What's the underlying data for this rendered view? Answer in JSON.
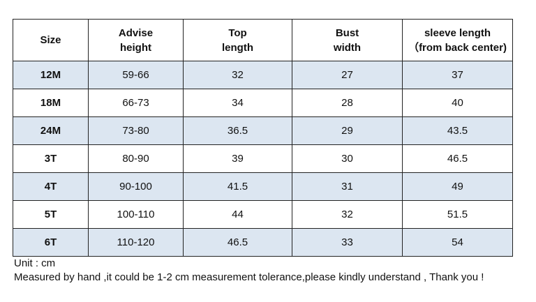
{
  "table": {
    "header": [
      [
        "Size"
      ],
      [
        "Advise",
        "height"
      ],
      [
        "Top",
        "length"
      ],
      [
        "Bust",
        "width"
      ],
      [
        "sleeve length",
        "（from back center)"
      ]
    ],
    "rows": [
      [
        "12M",
        "59-66",
        "32",
        "27",
        "37"
      ],
      [
        "18M",
        "66-73",
        "34",
        "28",
        "40"
      ],
      [
        "24M",
        "73-80",
        "36.5",
        "29",
        "43.5"
      ],
      [
        "3T",
        "80-90",
        "39",
        "30",
        "46.5"
      ],
      [
        "4T",
        "90-100",
        "41.5",
        "31",
        "49"
      ],
      [
        "5T",
        "100-110",
        "44",
        "32",
        "51.5"
      ],
      [
        "6T",
        "110-120",
        "46.5",
        "33",
        "54"
      ]
    ]
  },
  "notes": [
    "Unit : cm",
    "Measured by hand ,it could be 1-2 cm measurement tolerance,please kindly understand , Thank you !"
  ]
}
